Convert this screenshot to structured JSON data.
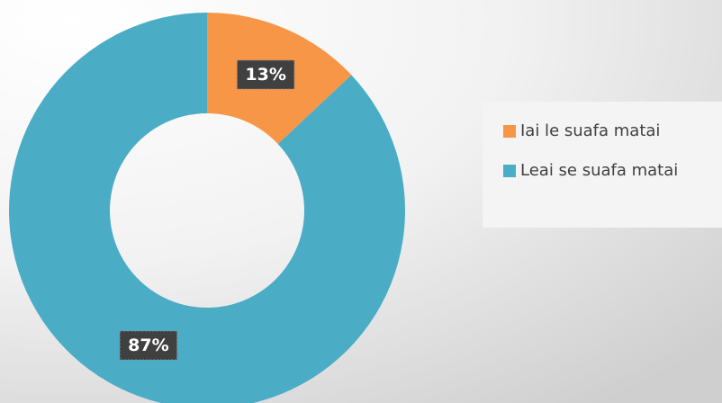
{
  "chart_data": {
    "type": "pie",
    "donut": true,
    "categories": [
      "Iai le suafa matai",
      "Leai se suafa matai"
    ],
    "values": [
      13,
      87
    ],
    "value_labels": [
      "13%",
      "87%"
    ],
    "colors": [
      "#f79646",
      "#4bacc6"
    ],
    "legend": "right"
  }
}
